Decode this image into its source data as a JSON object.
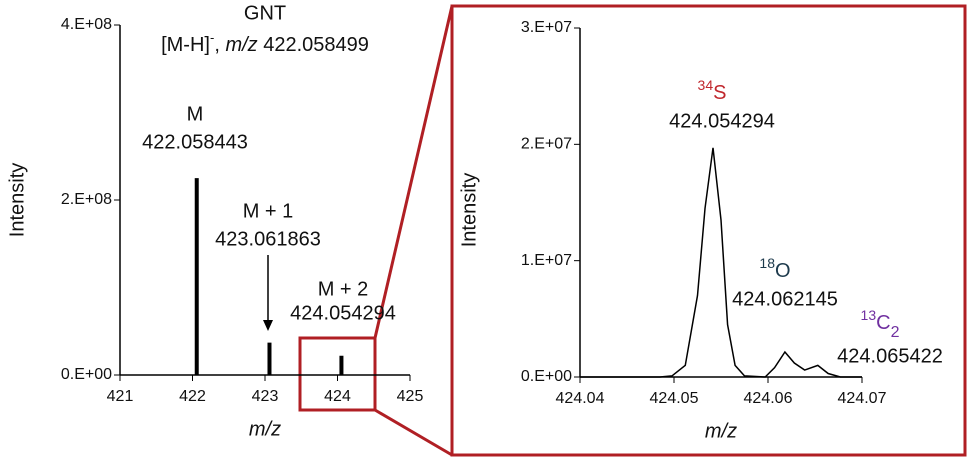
{
  "chart_data": [
    {
      "type": "bar",
      "title": "GNT",
      "subtitle": [
        "[M-H]",
        "-",
        ", ",
        "m/z",
        " 422.058499"
      ],
      "x_label": "m/z",
      "y_label": "Intensity",
      "x": [
        422.058443,
        423.061863,
        424.054294
      ],
      "values": [
        225000000,
        37000000,
        22000000
      ],
      "peak_labels": [
        "M",
        "M + 1",
        "M + 2"
      ],
      "color": "#000000",
      "xlim": [
        421,
        425
      ],
      "xticks": [
        421,
        422,
        423,
        424,
        425
      ],
      "ylim": [
        0,
        400000000
      ],
      "yticks": [
        {
          "value": 0,
          "label": "0.E+00"
        },
        {
          "value": 200000000,
          "label": "2.E+08"
        },
        {
          "value": 400000000,
          "label": "4.E+08"
        }
      ]
    },
    {
      "type": "line",
      "x_label": "m/z",
      "y_label": "Intensity",
      "color": "#000000",
      "x": [
        424.04,
        424.0485,
        424.0498,
        424.0512,
        424.0525,
        424.0533,
        424.05415,
        424.055,
        424.0557,
        424.0565,
        424.0575,
        424.0597,
        424.0607,
        424.0618,
        424.0628,
        424.0639,
        424.0653,
        424.0664,
        424.0677,
        424.07
      ],
      "values": [
        0,
        0,
        100000,
        1000000,
        7000000,
        14500000,
        19700000,
        13500000,
        4500000,
        1000000,
        100000,
        0,
        800000,
        2150000,
        1200000,
        600000,
        1000000,
        300000,
        0,
        0
      ],
      "annotations": [
        {
          "isotope": [
            "34",
            "S"
          ],
          "mass": 424.054294,
          "color": "#c0272d"
        },
        {
          "isotope": [
            "18",
            "O"
          ],
          "mass": 424.062145,
          "color": "#1d3a4c"
        },
        {
          "isotope": [
            "13",
            "C",
            "2"
          ],
          "mass": 424.065422,
          "color": "#7030a0"
        }
      ],
      "xlim": [
        424.04,
        424.07
      ],
      "xticks": [
        424.04,
        424.05,
        424.06,
        424.07
      ],
      "ylim": [
        0,
        30000000
      ],
      "yticks": [
        {
          "value": 0,
          "label": "0.E+00"
        },
        {
          "value": 10000000,
          "label": "1.E+07"
        },
        {
          "value": 20000000,
          "label": "2.E+07"
        },
        {
          "value": 30000000,
          "label": "3.E+07"
        }
      ]
    }
  ]
}
